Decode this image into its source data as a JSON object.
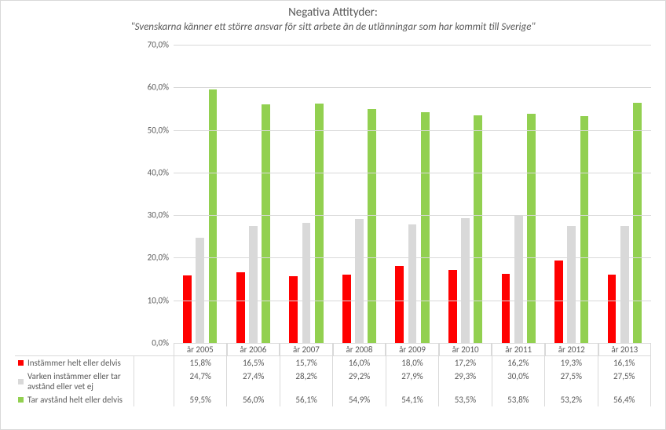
{
  "chart": {
    "type": "bar-grouped-with-data-table",
    "title": "Negativa Attityder:",
    "subtitle": "\"Svenskarna känner ett större ansvar för sitt arbete än de utlänningar som har kommit till Sverige\"",
    "title_fontsize": 15,
    "subtitle_fontsize": 13,
    "subtitle_style": "italic",
    "background_color": "#ffffff",
    "grid_color": "#d9d9d9",
    "text_color": "#595959",
    "label_fontsize": 11,
    "y_axis": {
      "min": 0,
      "max": 70,
      "tick_step": 10,
      "ticks": [
        "0,0%",
        "10,0%",
        "20,0%",
        "30,0%",
        "40,0%",
        "50,0%",
        "60,0%",
        "70,0%"
      ]
    },
    "categories": [
      "år 2005",
      "år 2006",
      "år 2007",
      "år 2008",
      "år 2009",
      "år 2010",
      "år 2011",
      "år 2012",
      "år 2013"
    ],
    "series": [
      {
        "name": "Instämmer helt eller delvis",
        "color": "#ff0000",
        "values": [
          15.8,
          16.5,
          15.7,
          16.0,
          18.0,
          17.2,
          16.2,
          19.3,
          16.1
        ],
        "labels": [
          "15,8%",
          "16,5%",
          "15,7%",
          "16,0%",
          "18,0%",
          "17,2%",
          "16,2%",
          "19,3%",
          "16,1%"
        ]
      },
      {
        "name": "Varken instämmer eller tar avstånd eller vet ej",
        "color": "#d9d9d9",
        "values": [
          24.7,
          27.4,
          28.2,
          29.2,
          27.9,
          29.3,
          30.0,
          27.5,
          27.5
        ],
        "labels": [
          "24,7%",
          "27,4%",
          "28,2%",
          "29,2%",
          "27,9%",
          "29,3%",
          "30,0%",
          "27,5%",
          "27,5%"
        ]
      },
      {
        "name": "Tar avstånd helt eller delvis",
        "color": "#92d050",
        "values": [
          59.5,
          56.0,
          56.1,
          54.9,
          54.1,
          53.5,
          53.8,
          53.2,
          56.4
        ],
        "labels": [
          "59,5%",
          "56,0%",
          "56,1%",
          "54,9%",
          "54,1%",
          "53,5%",
          "53,8%",
          "53,2%",
          "56,4%"
        ]
      }
    ]
  }
}
